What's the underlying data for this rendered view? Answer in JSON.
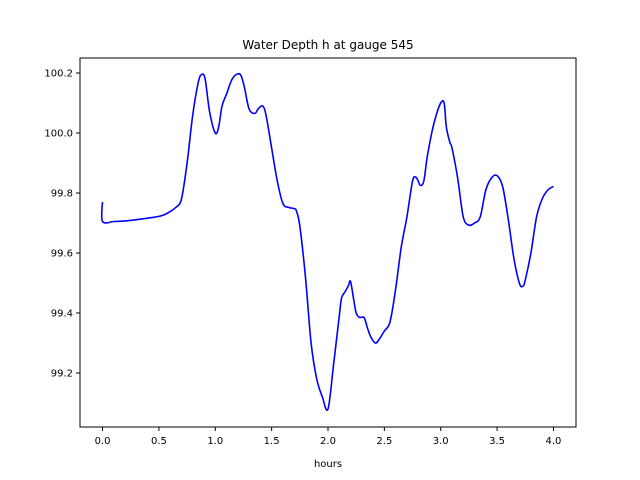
{
  "chart_data": {
    "type": "line",
    "title": "Water Depth h at gauge 545",
    "xlabel": "hours",
    "ylabel": "",
    "xlim": [
      -0.2,
      4.2
    ],
    "ylim": [
      99.02,
      100.25
    ],
    "grid": false,
    "x_ticks": [
      {
        "value": 0.0,
        "label": "0.0"
      },
      {
        "value": 0.5,
        "label": "0.5"
      },
      {
        "value": 1.0,
        "label": "1.0"
      },
      {
        "value": 1.5,
        "label": "1.5"
      },
      {
        "value": 2.0,
        "label": "2.0"
      },
      {
        "value": 2.5,
        "label": "2.5"
      },
      {
        "value": 3.0,
        "label": "3.0"
      },
      {
        "value": 3.5,
        "label": "3.5"
      },
      {
        "value": 4.0,
        "label": "4.0"
      }
    ],
    "y_ticks": [
      {
        "value": 99.2,
        "label": "99.2"
      },
      {
        "value": 99.4,
        "label": "99.4"
      },
      {
        "value": 99.6,
        "label": "99.6"
      },
      {
        "value": 99.8,
        "label": "99.8"
      },
      {
        "value": 100.0,
        "label": "100.0"
      },
      {
        "value": 100.2,
        "label": "100.2"
      }
    ],
    "series": [
      {
        "color": "#0000ff",
        "x": [
          0.0,
          0.0,
          0.1,
          0.2,
          0.3,
          0.4,
          0.5,
          0.55,
          0.6,
          0.65,
          0.7,
          0.75,
          0.8,
          0.85,
          0.88,
          0.91,
          0.95,
          1.0,
          1.03,
          1.06,
          1.1,
          1.15,
          1.2,
          1.23,
          1.26,
          1.3,
          1.35,
          1.38,
          1.42,
          1.45,
          1.5,
          1.55,
          1.6,
          1.65,
          1.7,
          1.72,
          1.75,
          1.8,
          1.85,
          1.9,
          1.95,
          2.0,
          2.05,
          2.1,
          2.12,
          2.15,
          2.18,
          2.2,
          2.23,
          2.25,
          2.28,
          2.32,
          2.35,
          2.38,
          2.42,
          2.45,
          2.5,
          2.55,
          2.6,
          2.65,
          2.7,
          2.75,
          2.78,
          2.8,
          2.82,
          2.85,
          2.88,
          2.92,
          2.96,
          3.0,
          3.03,
          3.05,
          3.08,
          3.1,
          3.15,
          3.2,
          3.25,
          3.3,
          3.35,
          3.4,
          3.45,
          3.5,
          3.55,
          3.6,
          3.65,
          3.7,
          3.73,
          3.75,
          3.8,
          3.85,
          3.9,
          3.95,
          4.0
        ],
        "values": [
          99.77,
          99.705,
          99.705,
          99.707,
          99.711,
          99.716,
          99.722,
          99.728,
          99.738,
          99.752,
          99.78,
          99.9,
          100.06,
          100.17,
          100.195,
          100.18,
          100.07,
          100.0,
          100.02,
          100.09,
          100.13,
          100.18,
          100.197,
          100.19,
          100.15,
          100.08,
          100.065,
          100.08,
          100.09,
          100.06,
          99.95,
          99.84,
          99.765,
          99.752,
          99.748,
          99.74,
          99.69,
          99.52,
          99.3,
          99.18,
          99.12,
          99.08,
          99.23,
          99.39,
          99.45,
          99.47,
          99.49,
          99.505,
          99.44,
          99.4,
          99.385,
          99.385,
          99.35,
          99.32,
          99.3,
          99.31,
          99.34,
          99.37,
          99.48,
          99.62,
          99.72,
          99.84,
          99.852,
          99.84,
          99.825,
          99.84,
          99.92,
          100.0,
          100.06,
          100.1,
          100.1,
          100.02,
          99.97,
          99.95,
          99.85,
          99.72,
          99.693,
          99.7,
          99.72,
          99.81,
          99.85,
          99.858,
          99.82,
          99.71,
          99.58,
          99.497,
          99.49,
          99.51,
          99.6,
          99.72,
          99.78,
          99.81,
          99.822
        ]
      }
    ]
  }
}
